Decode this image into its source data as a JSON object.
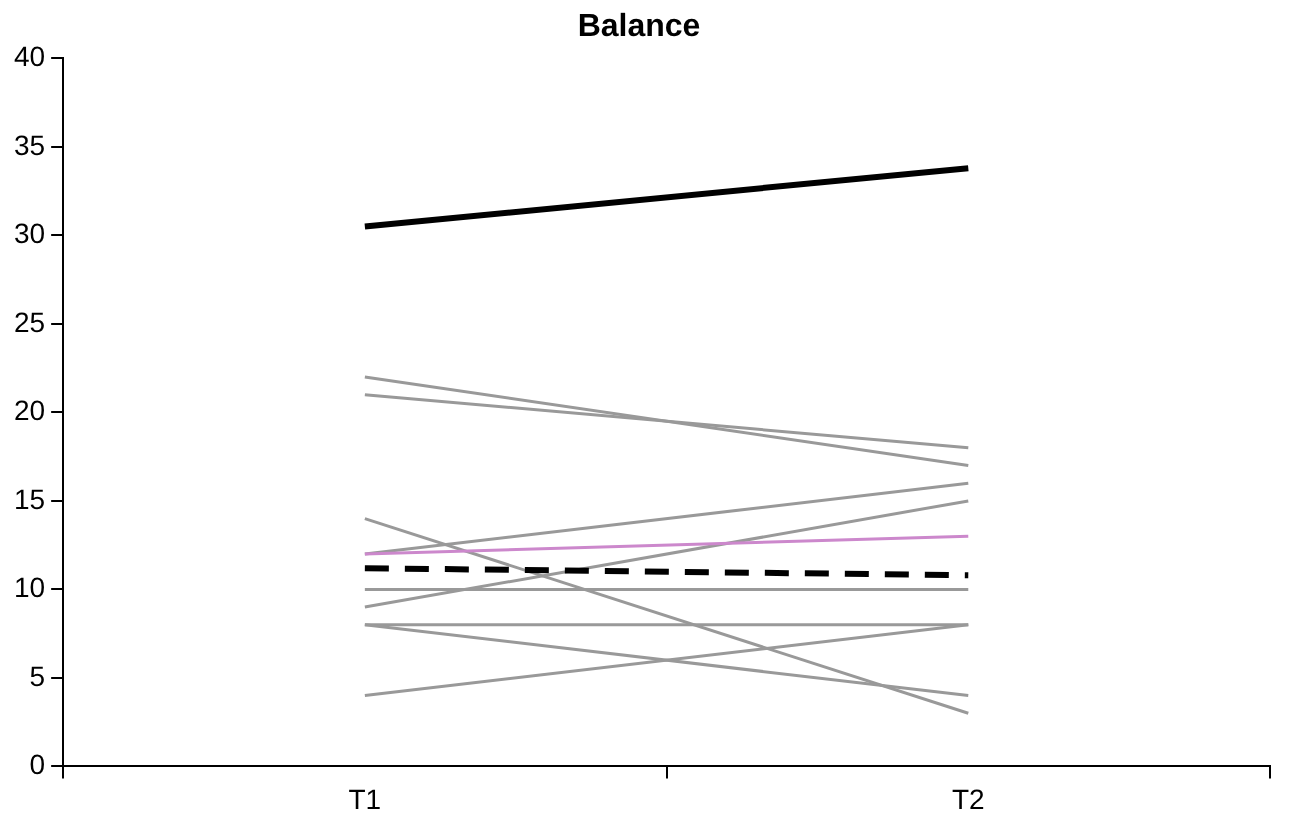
{
  "chart_data": {
    "type": "line",
    "title": "Balance",
    "categories": [
      "T1",
      "T2"
    ],
    "series": [
      {
        "color": "#999999",
        "values": [
          22,
          17
        ]
      },
      {
        "color": "#999999",
        "values": [
          21,
          18
        ]
      },
      {
        "color": "#999999",
        "values": [
          12,
          16
        ]
      },
      {
        "color": "#999999",
        "values": [
          9,
          15
        ]
      },
      {
        "color": "#999999",
        "values": [
          14,
          3
        ]
      },
      {
        "color": "#999999",
        "values": [
          10,
          10
        ]
      },
      {
        "color": "#999999",
        "values": [
          8,
          8
        ]
      },
      {
        "color": "#999999",
        "values": [
          8,
          4
        ]
      },
      {
        "color": "#999999",
        "values": [
          4,
          8
        ]
      },
      {
        "color": "#cc88cc",
        "values": [
          12,
          13
        ]
      },
      {
        "color": "#000000",
        "values": [
          30.5,
          33.8
        ]
      },
      {
        "color": "#000000",
        "values": [
          11.2,
          10.8
        ],
        "line_style": "dashed"
      }
    ],
    "ylim": [
      0,
      40
    ],
    "yticks": [
      0,
      5,
      10,
      15,
      20,
      25,
      30,
      35,
      40
    ],
    "grid": false,
    "legend": false,
    "marker": "none"
  }
}
